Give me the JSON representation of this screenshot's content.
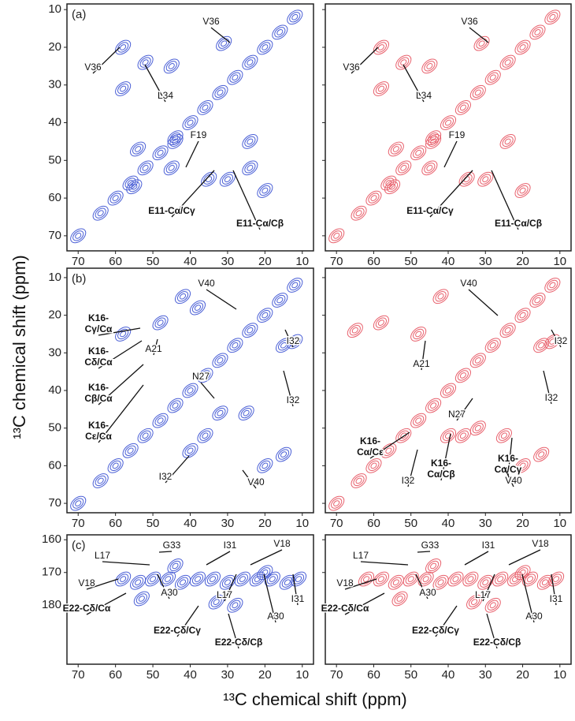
{
  "figure": {
    "xlabel": "¹³C chemical shift (ppm)",
    "ylabel": "¹³C chemical shift (ppm)"
  },
  "chart_data": [
    {
      "type": "contour",
      "panel_label": "(a)",
      "color": "#4a5fd6",
      "xlim": [
        73,
        7
      ],
      "ylim": [
        8.5,
        74
      ],
      "xticks": [
        70,
        60,
        50,
        40,
        30,
        20,
        10
      ],
      "yticks": [
        10,
        20,
        30,
        40,
        50,
        60,
        70
      ],
      "peaks": {
        "x": [
          12,
          16,
          20,
          24,
          28,
          32,
          36,
          40,
          44,
          48,
          52,
          56,
          60,
          64,
          70,
          58,
          58,
          52,
          45,
          31,
          44,
          54,
          24,
          24,
          35,
          30,
          20,
          55,
          45
        ],
        "y": [
          12,
          16,
          20,
          24,
          28,
          32,
          36,
          40,
          44,
          48,
          52,
          56,
          60,
          64,
          70,
          20,
          31,
          24,
          25,
          19,
          45,
          47,
          45,
          52,
          55,
          55,
          58,
          57,
          52
        ]
      },
      "annotations": [
        [
          "V36"
        ],
        [
          "V36"
        ],
        [
          "L34"
        ],
        [
          "F19"
        ],
        [
          "E11-Cα/Cγ"
        ],
        [
          "E11-Cα/Cβ"
        ]
      ]
    },
    {
      "type": "contour",
      "color": "#e8606c",
      "xlim": [
        73,
        7
      ],
      "ylim": [
        8.5,
        74
      ],
      "xticks": [
        70,
        60,
        50,
        40,
        30,
        20,
        10
      ],
      "yticks": [
        10,
        20,
        30,
        40,
        50,
        60,
        70
      ],
      "peaks": {
        "x": [
          12,
          16,
          20,
          24,
          28,
          32,
          36,
          40,
          44,
          48,
          52,
          56,
          60,
          64,
          70,
          58,
          58,
          52,
          45,
          31,
          44,
          54,
          24,
          35,
          30,
          20,
          55,
          45
        ],
        "y": [
          12,
          16,
          20,
          24,
          28,
          32,
          36,
          40,
          44,
          48,
          52,
          56,
          60,
          64,
          70,
          20,
          31,
          24,
          25,
          19,
          45,
          47,
          45,
          55,
          55,
          58,
          57,
          52
        ]
      },
      "annotations": [
        [
          "V36"
        ],
        [
          "V36"
        ],
        [
          "L34"
        ],
        [
          "F19"
        ],
        [
          "E11-Cα/Cγ"
        ],
        [
          "E11-Cα/Cβ"
        ]
      ]
    },
    {
      "type": "contour",
      "panel_label": "(b)",
      "color": "#4a5fd6",
      "xlim": [
        73,
        7
      ],
      "ylim": [
        7.5,
        72.5
      ],
      "xticks": [
        70,
        60,
        50,
        40,
        30,
        20,
        10
      ],
      "yticks": [
        10,
        20,
        30,
        40,
        50,
        60,
        70
      ],
      "peaks": {
        "x": [
          12,
          16,
          20,
          24,
          28,
          32,
          36,
          40,
          44,
          48,
          52,
          56,
          60,
          64,
          70,
          48,
          42,
          38,
          15,
          12,
          32,
          25,
          20,
          15,
          40,
          58,
          36
        ],
        "y": [
          12,
          16,
          20,
          24,
          28,
          32,
          36,
          40,
          44,
          48,
          52,
          56,
          60,
          64,
          70,
          22,
          15,
          18,
          28,
          27,
          46,
          46,
          60,
          57,
          56,
          25,
          52
        ]
      },
      "annotations": [
        [
          "V40"
        ],
        [
          "K16-",
          "Cγ/Cα"
        ],
        [
          "K16-",
          "Cδ/Cα"
        ],
        [
          "K16-",
          "Cβ/Cα"
        ],
        [
          "K16-",
          "Cε/Cα"
        ],
        [
          "A21"
        ],
        [
          "I32"
        ],
        [
          "I32"
        ],
        [
          "N27"
        ],
        [
          "I32"
        ],
        [
          "V40"
        ]
      ]
    },
    {
      "type": "contour",
      "color": "#e8606c",
      "xlim": [
        73,
        7
      ],
      "ylim": [
        7.5,
        72.5
      ],
      "xticks": [
        70,
        60,
        50,
        40,
        30,
        20,
        10
      ],
      "yticks": [
        10,
        20,
        30,
        40,
        50,
        60,
        70
      ],
      "peaks": {
        "x": [
          12,
          16,
          20,
          24,
          28,
          32,
          36,
          40,
          44,
          48,
          52,
          56,
          60,
          64,
          70,
          48,
          42,
          15,
          12,
          32,
          25,
          20,
          15,
          40,
          58,
          36,
          65
        ],
        "y": [
          12,
          16,
          20,
          24,
          28,
          32,
          36,
          40,
          44,
          48,
          52,
          56,
          60,
          64,
          70,
          25,
          15,
          28,
          27,
          50,
          52,
          60,
          57,
          52,
          22,
          52,
          24
        ]
      },
      "annotations": [
        [
          "V40"
        ],
        [
          "A21"
        ],
        [
          "I32"
        ],
        [
          "N27"
        ],
        [
          "I32"
        ],
        [
          "K16-",
          "Cα/Cε"
        ],
        [
          "K16-",
          "Cα/Cβ"
        ],
        [
          "K16-",
          "Cα/Cγ"
        ],
        [
          "I32"
        ],
        [
          "V40"
        ]
      ]
    },
    {
      "type": "contour",
      "panel_label": "(c)",
      "color": "#4a5fd6",
      "xlim": [
        73,
        7
      ],
      "ylim": [
        158.5,
        198
      ],
      "xticks": [
        70,
        60,
        50,
        40,
        30,
        20,
        10
      ],
      "yticks": [
        160,
        170,
        180
      ],
      "peaks": {
        "x": [
          58,
          54,
          50,
          46,
          42,
          38,
          34,
          30,
          26,
          22,
          18,
          14,
          11,
          44,
          53,
          33,
          28,
          20
        ],
        "y": [
          172,
          173,
          172,
          172,
          173,
          172,
          172,
          173,
          172,
          172,
          172,
          173,
          172,
          168,
          178,
          179,
          180,
          170
        ]
      },
      "annotations": [
        [
          "G33"
        ],
        [
          "L17"
        ],
        [
          "I31"
        ],
        [
          "V18"
        ],
        [
          "V18"
        ],
        [
          "A30"
        ],
        [
          "L17"
        ],
        [
          "A30"
        ],
        [
          "I31"
        ],
        [
          "E22-Cδ/Cα"
        ],
        [
          "E22-Cδ/Cγ"
        ],
        [
          "E22-Cδ/Cβ"
        ]
      ]
    },
    {
      "type": "contour",
      "color": "#e8606c",
      "xlim": [
        73,
        7
      ],
      "ylim": [
        158.5,
        198
      ],
      "xticks": [
        70,
        60,
        50,
        40,
        30,
        20,
        10
      ],
      "yticks": [
        160,
        170,
        180
      ],
      "peaks": {
        "x": [
          62,
          58,
          54,
          50,
          46,
          42,
          38,
          34,
          30,
          26,
          22,
          18,
          14,
          11,
          44,
          53,
          33,
          28,
          20
        ],
        "y": [
          172,
          172,
          173,
          172,
          172,
          173,
          172,
          172,
          173,
          172,
          172,
          172,
          173,
          172,
          168,
          178,
          179,
          180,
          170
        ]
      },
      "annotations": [
        [
          "G33"
        ],
        [
          "L17"
        ],
        [
          "I31"
        ],
        [
          "V18"
        ],
        [
          "V18"
        ],
        [
          "A30"
        ],
        [
          "L17"
        ],
        [
          "A30"
        ],
        [
          "I31"
        ],
        [
          "E22-Cδ/Cα"
        ],
        [
          "E22-Cδ/Cγ"
        ],
        [
          "E22-Cδ/Cβ"
        ]
      ]
    }
  ]
}
